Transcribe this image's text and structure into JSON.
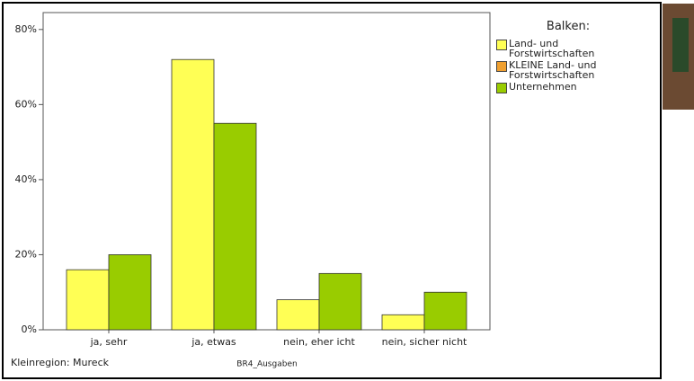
{
  "chart_data": {
    "type": "bar",
    "x_label": "BR4_Ausgaben",
    "footnote": "Kleinregion: Mureck",
    "legend_title": "Balken:",
    "legend_position": "right",
    "categories": [
      "ja, sehr",
      "ja, etwas",
      "nein, eher icht",
      "nein, sicher nicht"
    ],
    "series": [
      {
        "name": "Land- und Forstwirtschaften",
        "color": "#ffff55",
        "values": [
          16,
          72,
          8,
          4
        ]
      },
      {
        "name": "KLEINE Land- und Forstwirtschaften",
        "color": "#f0a030",
        "values": [
          null,
          null,
          null,
          null
        ]
      },
      {
        "name": "Unternehmen",
        "color": "#99cc00",
        "values": [
          20,
          55,
          15,
          10
        ]
      }
    ],
    "ylim": [
      0,
      84.5
    ],
    "yticks": [
      {
        "value": 0,
        "label": "0%"
      },
      {
        "value": 20,
        "label": "20%"
      },
      {
        "value": 40,
        "label": "40%"
      },
      {
        "value": 60,
        "label": "60%"
      },
      {
        "value": 80,
        "label": "80%"
      }
    ]
  }
}
